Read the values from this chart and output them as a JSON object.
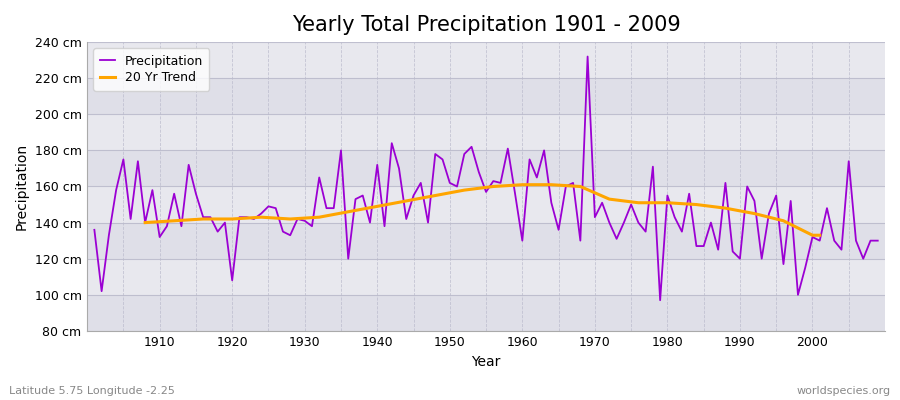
{
  "title": "Yearly Total Precipitation 1901 - 2009",
  "xlabel": "Year",
  "ylabel": "Precipitation",
  "subtitle": "Latitude 5.75 Longitude -2.25",
  "watermark": "worldspecies.org",
  "ylim": [
    80,
    240
  ],
  "ytick_step": 20,
  "years": [
    1901,
    1902,
    1903,
    1904,
    1905,
    1906,
    1907,
    1908,
    1909,
    1910,
    1911,
    1912,
    1913,
    1914,
    1915,
    1916,
    1917,
    1918,
    1919,
    1920,
    1921,
    1922,
    1923,
    1924,
    1925,
    1926,
    1927,
    1928,
    1929,
    1930,
    1931,
    1932,
    1933,
    1934,
    1935,
    1936,
    1937,
    1938,
    1939,
    1940,
    1941,
    1942,
    1943,
    1944,
    1945,
    1946,
    1947,
    1948,
    1949,
    1950,
    1951,
    1952,
    1953,
    1954,
    1955,
    1956,
    1957,
    1958,
    1959,
    1960,
    1961,
    1962,
    1963,
    1964,
    1965,
    1966,
    1967,
    1968,
    1969,
    1970,
    1971,
    1972,
    1973,
    1974,
    1975,
    1976,
    1977,
    1978,
    1979,
    1980,
    1981,
    1982,
    1983,
    1984,
    1985,
    1986,
    1987,
    1988,
    1989,
    1990,
    1991,
    1992,
    1993,
    1994,
    1995,
    1996,
    1997,
    1998,
    1999,
    2000,
    2001,
    2002,
    2003,
    2004,
    2005,
    2006,
    2007,
    2008,
    2009
  ],
  "precipitation": [
    136,
    102,
    133,
    158,
    175,
    142,
    174,
    140,
    158,
    132,
    138,
    156,
    138,
    172,
    156,
    143,
    143,
    135,
    140,
    108,
    143,
    143,
    142,
    145,
    149,
    148,
    135,
    133,
    142,
    141,
    138,
    165,
    148,
    148,
    180,
    120,
    153,
    155,
    140,
    172,
    138,
    184,
    170,
    142,
    155,
    162,
    140,
    178,
    175,
    162,
    160,
    178,
    182,
    168,
    157,
    163,
    162,
    181,
    156,
    130,
    175,
    165,
    180,
    151,
    136,
    160,
    162,
    130,
    232,
    143,
    151,
    140,
    131,
    140,
    150,
    140,
    135,
    171,
    97,
    155,
    143,
    135,
    156,
    127,
    127,
    140,
    125,
    162,
    124,
    120,
    160,
    152,
    120,
    145,
    155,
    117,
    152,
    100,
    115,
    132,
    130,
    148,
    130,
    125,
    174,
    130,
    120,
    130,
    130
  ],
  "trend_years": [
    1908,
    1912,
    1916,
    1920,
    1924,
    1928,
    1932,
    1936,
    1940,
    1944,
    1948,
    1952,
    1956,
    1960,
    1964,
    1968,
    1972,
    1976,
    1980,
    1984,
    1988,
    1992,
    1996,
    2000,
    2001
  ],
  "trend_values": [
    140,
    141,
    142,
    142,
    143,
    142,
    143,
    146,
    149,
    152,
    155,
    158,
    160,
    161,
    161,
    160,
    153,
    151,
    151,
    150,
    148,
    145,
    141,
    133,
    133
  ],
  "precip_color": "#9B00D3",
  "trend_color": "#FFA500",
  "fig_bg_color": "#ffffff",
  "plot_bg_color": "#e8e8ee",
  "plot_bg_alt_color": "#d8d8e4",
  "grid_color": "#bbbbcc",
  "spine_color": "#aaaaaa",
  "title_fontsize": 15,
  "label_fontsize": 10,
  "tick_fontsize": 9,
  "legend_fontsize": 9,
  "xlim": [
    1900,
    2010
  ]
}
